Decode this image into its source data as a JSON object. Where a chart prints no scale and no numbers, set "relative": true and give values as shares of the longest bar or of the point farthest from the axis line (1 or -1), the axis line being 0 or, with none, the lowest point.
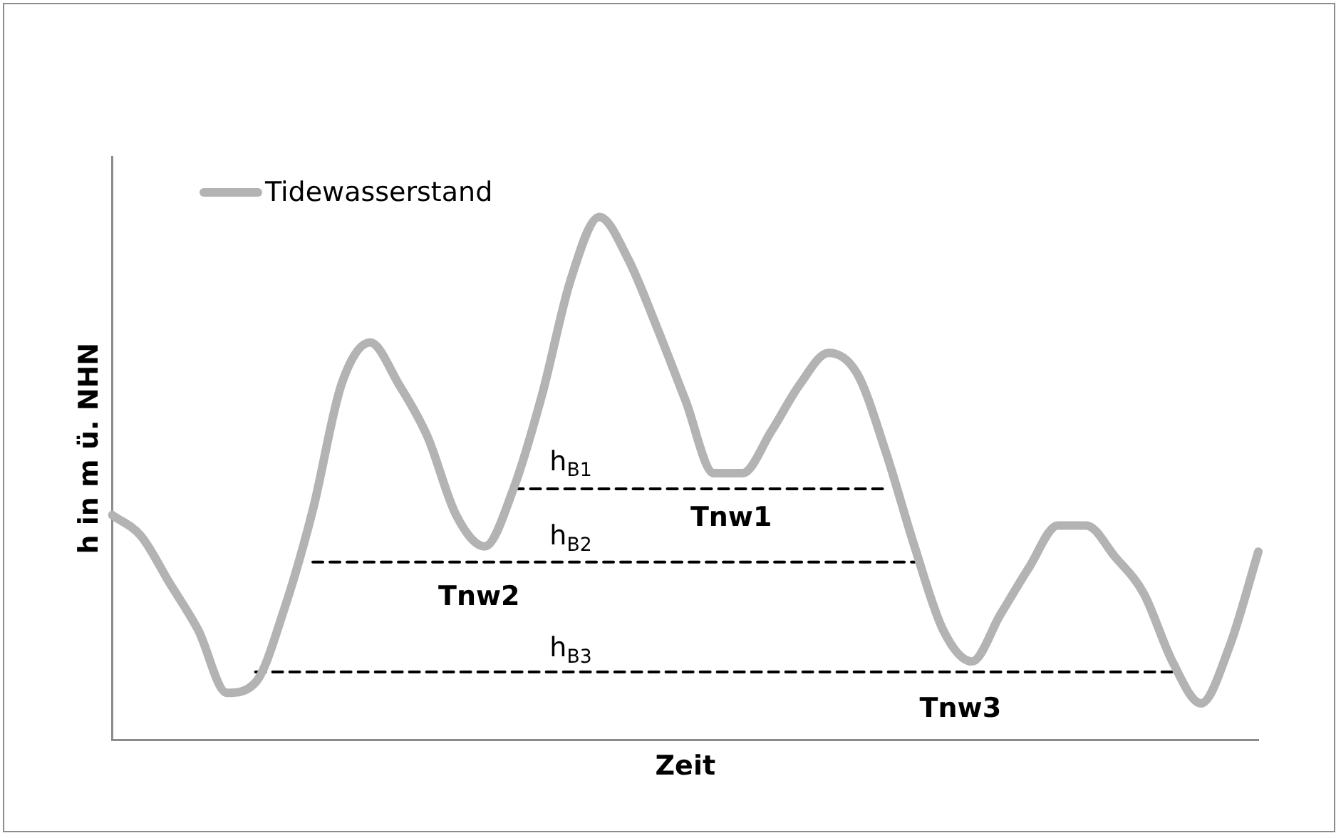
{
  "chart_data": {
    "type": "line",
    "relative": true,
    "xlabel": "Zeit",
    "ylabel": "h in m ü. NHN",
    "legend": "top left",
    "grid": false,
    "marker": "none",
    "categories": [
      null,
      null,
      null,
      null,
      null,
      null,
      null,
      null,
      null,
      null,
      null,
      null,
      null,
      null,
      null,
      null,
      null,
      null,
      null,
      null,
      null,
      null,
      null,
      null,
      null,
      null,
      null,
      null,
      null,
      null,
      null,
      null,
      null,
      null,
      null,
      null,
      null,
      null,
      null,
      null,
      null
    ],
    "series": [
      {
        "name": "Tidewasserstand",
        "color": "#b3b3b3",
        "values": [
          0.43,
          0.39,
          0.3,
          0.21,
          0.09,
          0.11,
          0.25,
          0.44,
          0.68,
          0.76,
          0.68,
          0.58,
          0.43,
          0.37,
          0.48,
          0.66,
          0.88,
          1,
          0.92,
          0.79,
          0.65,
          0.51,
          0.51,
          0.59,
          0.68,
          0.74,
          0.7,
          0.55,
          0.37,
          0.21,
          0.15,
          0.24,
          0.33,
          0.41,
          0.41,
          0.35,
          0.28,
          0.15,
          0.07,
          0.18,
          0.36
        ]
      },
      {
        "color": "#000000",
        "line_style": "dashed",
        "values": [
          null,
          null,
          null,
          null,
          null,
          null,
          null,
          null,
          null,
          null,
          null,
          null,
          null,
          null,
          0.48,
          0.48,
          0.48,
          0.48,
          0.48,
          0.48,
          0.48,
          0.48,
          0.48,
          0.48,
          0.48,
          0.48,
          0.48,
          0.48,
          null,
          null,
          null,
          null,
          null,
          null,
          null,
          null,
          null,
          null,
          null,
          null,
          null
        ]
      },
      {
        "color": "#000000",
        "line_style": "dashed",
        "values": [
          null,
          null,
          null,
          null,
          null,
          null,
          null,
          0.34,
          0.34,
          0.34,
          0.34,
          0.34,
          0.34,
          0.34,
          0.34,
          0.34,
          0.34,
          0.34,
          0.34,
          0.34,
          0.34,
          0.34,
          0.34,
          0.34,
          0.34,
          0.34,
          0.34,
          0.34,
          0.34,
          null,
          null,
          null,
          null,
          null,
          null,
          null,
          null,
          null,
          null,
          null,
          null
        ]
      },
      {
        "color": "#000000",
        "line_style": "dashed",
        "values": [
          null,
          null,
          null,
          null,
          null,
          0.13,
          0.13,
          0.13,
          0.13,
          0.13,
          0.13,
          0.13,
          0.13,
          0.13,
          0.13,
          0.13,
          0.13,
          0.13,
          0.13,
          0.13,
          0.13,
          0.13,
          0.13,
          0.13,
          0.13,
          0.13,
          0.13,
          0.13,
          0.13,
          0.13,
          0.13,
          0.13,
          0.13,
          0.13,
          0.13,
          0.13,
          0.13,
          0.13,
          null,
          null,
          null
        ]
      }
    ],
    "annotations": [
      "h$_{B1}$",
      "h$_{B2}$",
      "h$_{B3}$",
      "Tnw1",
      "Tnw2",
      "Tnw3"
    ]
  }
}
